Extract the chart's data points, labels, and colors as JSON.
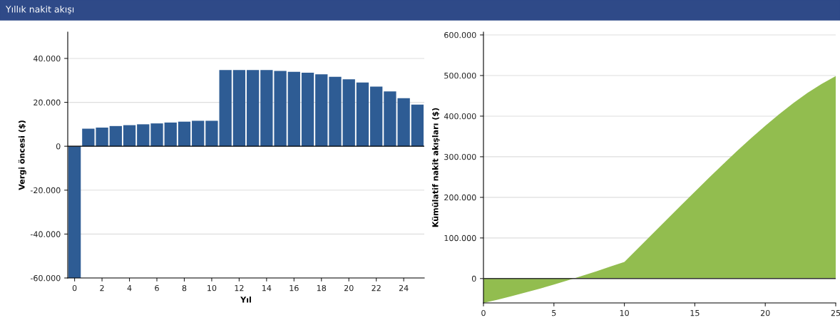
{
  "chart_data": [
    {
      "type": "bar",
      "title": "Yıllık nakit akışı",
      "xlabel": "Yıl",
      "ylabel": "Vergi öncesi ($)",
      "x": [
        0,
        1,
        2,
        3,
        4,
        5,
        6,
        7,
        8,
        9,
        10,
        11,
        12,
        13,
        14,
        15,
        16,
        17,
        18,
        19,
        20,
        21,
        22,
        23,
        24,
        25
      ],
      "values": [
        -60000,
        8000,
        8500,
        9200,
        9600,
        10000,
        10400,
        10800,
        11200,
        11600,
        11600,
        34700,
        34700,
        34700,
        34700,
        34300,
        33900,
        33500,
        32800,
        31600,
        30500,
        29000,
        27200,
        25000,
        21900,
        19000
      ],
      "color": "#2e5c94",
      "xlim": [
        -0.5,
        25.5
      ],
      "xticks": [
        0,
        2,
        4,
        6,
        8,
        10,
        12,
        14,
        16,
        18,
        20,
        22,
        24
      ],
      "ylim": [
        -60000,
        52000
      ],
      "yticks": [
        {
          "value": -60000,
          "label": "-60.000"
        },
        {
          "value": -40000,
          "label": "-40.000"
        },
        {
          "value": -20000,
          "label": "-20.000"
        },
        {
          "value": 0,
          "label": "0"
        },
        {
          "value": 20000,
          "label": "20.000"
        },
        {
          "value": 40000,
          "label": "40.000"
        }
      ],
      "grid": "y"
    },
    {
      "type": "area",
      "ylabel": "Kümülatif nakit akışları ($)",
      "x": [
        0,
        1,
        2,
        3,
        4,
        5,
        6,
        7,
        8,
        9,
        10,
        11,
        12,
        13,
        14,
        15,
        16,
        17,
        18,
        19,
        20,
        21,
        22,
        23,
        24,
        25
      ],
      "values": [
        -60000,
        -52000,
        -43500,
        -34300,
        -24700,
        -14700,
        -4300,
        6500,
        17700,
        29300,
        40900,
        75600,
        110300,
        145000,
        179700,
        214000,
        247900,
        281400,
        314200,
        345800,
        376300,
        405300,
        432500,
        457500,
        479400,
        498400
      ],
      "color": "#92bd4f",
      "xlim": [
        0,
        25
      ],
      "xticks": [
        0,
        5,
        10,
        15,
        20,
        25
      ],
      "ylim": [
        -60000,
        607000
      ],
      "yticks": [
        {
          "value": 0,
          "label": "0"
        },
        {
          "value": 100000,
          "label": "100.000"
        },
        {
          "value": 200000,
          "label": "200.000"
        },
        {
          "value": 300000,
          "label": "300.000"
        },
        {
          "value": 400000,
          "label": "400.000"
        },
        {
          "value": 500000,
          "label": "500.000"
        },
        {
          "value": 600000,
          "label": "600.000"
        }
      ],
      "grid": "y"
    }
  ]
}
